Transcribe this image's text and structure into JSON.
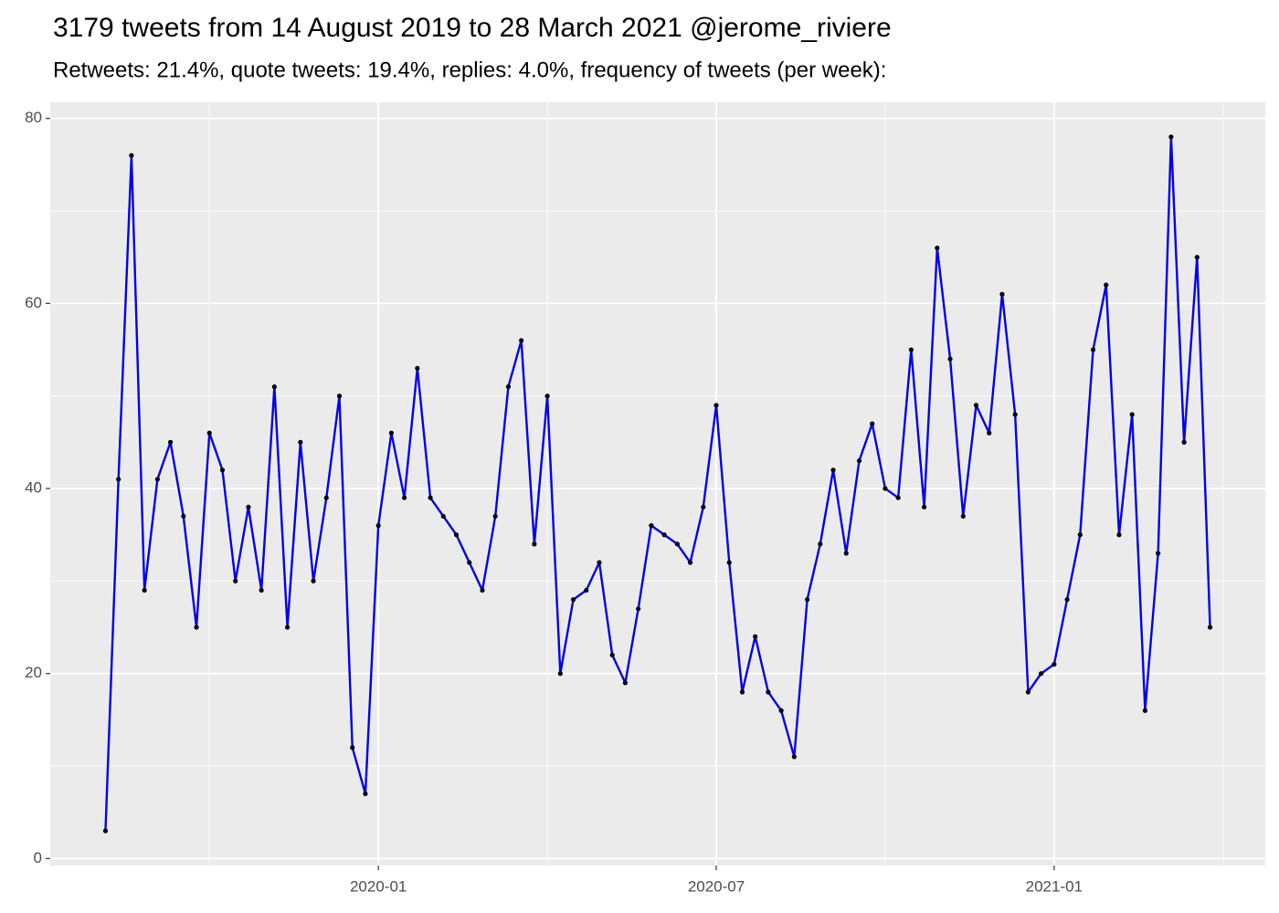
{
  "chart_data": {
    "type": "line",
    "title": "3179 tweets from 14 August 2019 to 28 March 2021 @jerome_riviere",
    "subtitle": "Retweets: 21.4%, quote tweets: 19.4%, replies: 4.0%, frequency of tweets (per week):",
    "categories": [
      null,
      null,
      null,
      null,
      null,
      null,
      null,
      null,
      null,
      null,
      null,
      null,
      null,
      null,
      null,
      null,
      null,
      null,
      null,
      null,
      null,
      "2020-01",
      null,
      null,
      null,
      null,
      null,
      null,
      null,
      null,
      null,
      null,
      null,
      null,
      null,
      null,
      null,
      null,
      null,
      null,
      null,
      null,
      null,
      null,
      null,
      null,
      null,
      "2020-07",
      null,
      null,
      null,
      null,
      null,
      null,
      null,
      null,
      null,
      null,
      null,
      null,
      null,
      null,
      null,
      null,
      null,
      null,
      null,
      null,
      null,
      null,
      null,
      null,
      null,
      "2021-01",
      null,
      null,
      null,
      null,
      null,
      null,
      null,
      null,
      null,
      null,
      null,
      null
    ],
    "values": [
      3,
      41,
      76,
      29,
      41,
      45,
      37,
      25,
      46,
      42,
      30,
      38,
      29,
      51,
      25,
      45,
      30,
      39,
      50,
      12,
      7,
      36,
      46,
      39,
      53,
      39,
      37,
      35,
      32,
      29,
      37,
      51,
      56,
      34,
      50,
      20,
      28,
      29,
      32,
      22,
      19,
      27,
      36,
      35,
      34,
      32,
      38,
      49,
      32,
      18,
      24,
      18,
      16,
      11,
      28,
      34,
      42,
      33,
      43,
      47,
      40,
      39,
      55,
      38,
      66,
      54,
      37,
      49,
      46,
      61,
      48,
      18,
      20,
      21,
      28,
      35,
      55,
      62,
      35,
      48,
      16,
      33,
      78,
      45,
      65,
      25
    ],
    "color": "#0000ee",
    "point_color": "#000000",
    "ylim": [
      -0.75,
      81.75
    ],
    "yticks": [
      0,
      20,
      40,
      60,
      80
    ],
    "grid": true
  }
}
